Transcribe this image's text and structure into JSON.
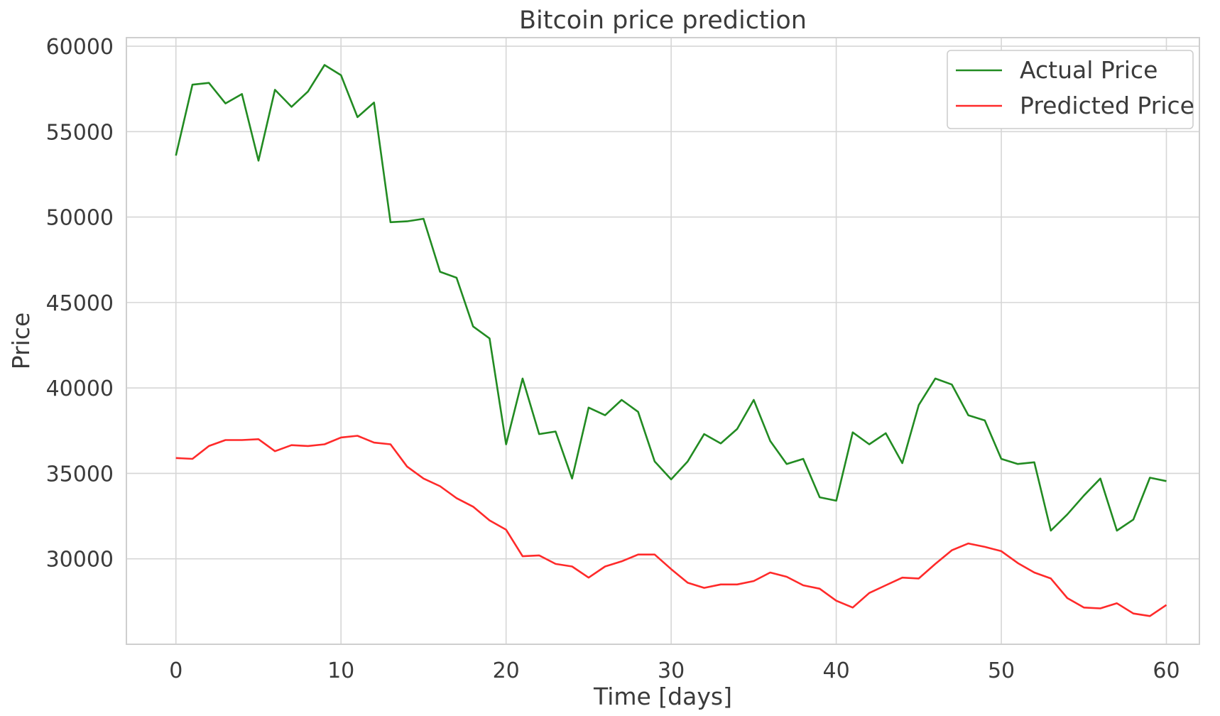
{
  "chart_data": {
    "type": "line",
    "title": "Bitcoin price prediction",
    "xlabel": "Time [days]",
    "ylabel": "Price",
    "xlim": [
      -3,
      62
    ],
    "ylim": [
      25000,
      60500
    ],
    "x_ticks": [
      0,
      10,
      20,
      30,
      40,
      50,
      60
    ],
    "y_ticks": [
      30000,
      35000,
      40000,
      45000,
      50000,
      55000,
      60000
    ],
    "grid": true,
    "legend_position": "top-right",
    "x": [
      0,
      1,
      2,
      3,
      4,
      5,
      6,
      7,
      8,
      9,
      10,
      11,
      12,
      13,
      14,
      15,
      16,
      17,
      18,
      19,
      20,
      21,
      22,
      23,
      24,
      25,
      26,
      27,
      28,
      29,
      30,
      31,
      32,
      33,
      34,
      35,
      36,
      37,
      38,
      39,
      40,
      41,
      42,
      43,
      44,
      45,
      46,
      47,
      48,
      49,
      50,
      51,
      52,
      53,
      54,
      55,
      56,
      57,
      58,
      59,
      60
    ],
    "series": [
      {
        "name": "Actual Price",
        "color": "#228b22",
        "values": [
          53600,
          57750,
          57850,
          56650,
          57200,
          53300,
          57450,
          56450,
          57350,
          58900,
          58300,
          55850,
          56700,
          49700,
          49750,
          49900,
          46800,
          46450,
          43600,
          42900,
          36700,
          40550,
          37300,
          37450,
          34700,
          38850,
          38400,
          39300,
          38600,
          35700,
          34650,
          35700,
          37300,
          36750,
          37600,
          39300,
          36900,
          35550,
          35850,
          33600,
          33400,
          37400,
          36700,
          37350,
          35600,
          39000,
          40550,
          40200,
          38400,
          38100,
          35850,
          35550,
          35650,
          31650,
          32600,
          33700,
          34700,
          31650,
          32300,
          34750,
          34550
        ]
      },
      {
        "name": "Predicted Price",
        "color": "#ff2a2a",
        "values": [
          35900,
          35850,
          36600,
          36950,
          36950,
          37000,
          36300,
          36650,
          36600,
          36700,
          37100,
          37200,
          36800,
          36700,
          35400,
          34700,
          34250,
          33550,
          33050,
          32250,
          31700,
          30150,
          30200,
          29700,
          29550,
          28900,
          29550,
          29850,
          30250,
          30250,
          29400,
          28600,
          28300,
          28500,
          28500,
          28700,
          29200,
          28950,
          28450,
          28250,
          27550,
          27150,
          28000,
          28450,
          28900,
          28850,
          29700,
          30500,
          30900,
          30700,
          30450,
          29750,
          29200,
          28850,
          27700,
          27150,
          27100,
          27400,
          26800,
          26650,
          27300
        ]
      }
    ]
  }
}
